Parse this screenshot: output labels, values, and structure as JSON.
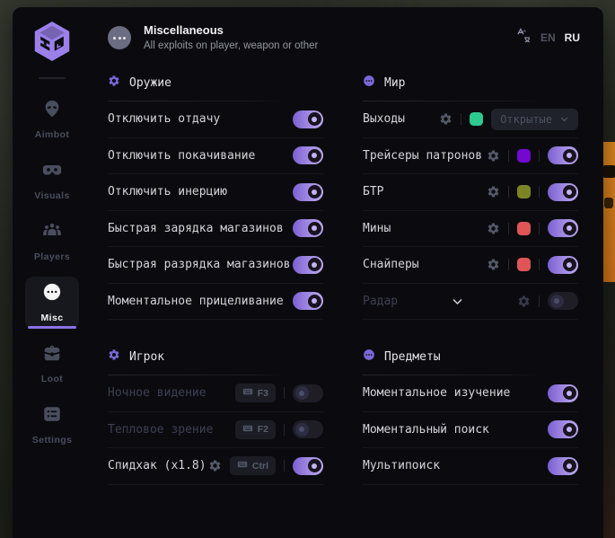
{
  "app": {
    "header": {
      "title": "Miscellaneous",
      "subtitle": "All exploits on player, weapon or other"
    },
    "lang": {
      "options": [
        "EN",
        "RU"
      ],
      "active": "RU"
    },
    "sidebar": [
      {
        "id": "aimbot",
        "label": "Aimbot",
        "icon": "alien-icon",
        "active": false
      },
      {
        "id": "visuals",
        "label": "Visuals",
        "icon": "vr-goggles-icon",
        "active": false
      },
      {
        "id": "players",
        "label": "Players",
        "icon": "players-icon",
        "active": false
      },
      {
        "id": "misc",
        "label": "Misc",
        "icon": "ellipsis-circle-icon",
        "active": true
      },
      {
        "id": "loot",
        "label": "Loot",
        "icon": "briefcase-icon",
        "active": false
      },
      {
        "id": "settings",
        "label": "Settings",
        "icon": "settings-list-icon",
        "active": false
      }
    ],
    "columns": [
      {
        "sections": [
          {
            "title": "Оружие",
            "icon": "gear-icon",
            "rows": [
              {
                "label": "Отключить отдачу",
                "toggle": "on"
              },
              {
                "label": "Отключить покачивание",
                "toggle": "on"
              },
              {
                "label": "Отключить инерцию",
                "toggle": "on"
              },
              {
                "label": "Быстрая зарядка магазинов",
                "toggle": "on"
              },
              {
                "label": "Быстрая разрядка магазинов",
                "toggle": "on"
              },
              {
                "label": "Моментальное прицеливание",
                "toggle": "on"
              }
            ]
          },
          {
            "title": "Игрок",
            "icon": "gear-icon",
            "rows": [
              {
                "label": "Ночное видение",
                "hotkey": "F3",
                "toggle": "off",
                "disabled": true
              },
              {
                "label": "Тепловое зрение",
                "hotkey": "F2",
                "toggle": "off",
                "disabled": true
              },
              {
                "label": "Спидхак (x1.8)",
                "gear": true,
                "hotkey": "Ctrl",
                "toggle": "on"
              }
            ]
          }
        ]
      },
      {
        "sections": [
          {
            "title": "Мир",
            "icon": "dots-circle-icon",
            "rows": [
              {
                "label": "Выходы",
                "gear": true,
                "swatch": "#2ec98f",
                "dropdown": "Открытые"
              },
              {
                "label": "Трейсеры патронов",
                "gear": true,
                "swatch": "#7309d1",
                "toggle": "on"
              },
              {
                "label": "БТР",
                "gear": true,
                "swatch": "#7d8426",
                "toggle": "on"
              },
              {
                "label": "Мины",
                "gear": true,
                "swatch": "#e05555",
                "toggle": "on"
              },
              {
                "label": "Снайперы",
                "gear": true,
                "swatch": "#e05555",
                "toggle": "on"
              },
              {
                "label": "Радар",
                "chevron": true,
                "gear": true,
                "toggle": "off",
                "disabled": true
              }
            ]
          },
          {
            "title": "Предметы",
            "icon": "dots-circle-icon",
            "rows": [
              {
                "label": "Моментальное изучение",
                "toggle": "on"
              },
              {
                "label": "Моментальный поиск",
                "toggle": "on"
              },
              {
                "label": "Мультипоиск",
                "toggle": "on"
              }
            ]
          }
        ]
      }
    ],
    "colors": {
      "accent": "#8b72e4",
      "toggle_on_from": "#7b60d0",
      "toggle_on_to": "#bcaaee",
      "window_bg": "#0b0b0f",
      "background_fragment_orange": "#d3761a"
    }
  }
}
